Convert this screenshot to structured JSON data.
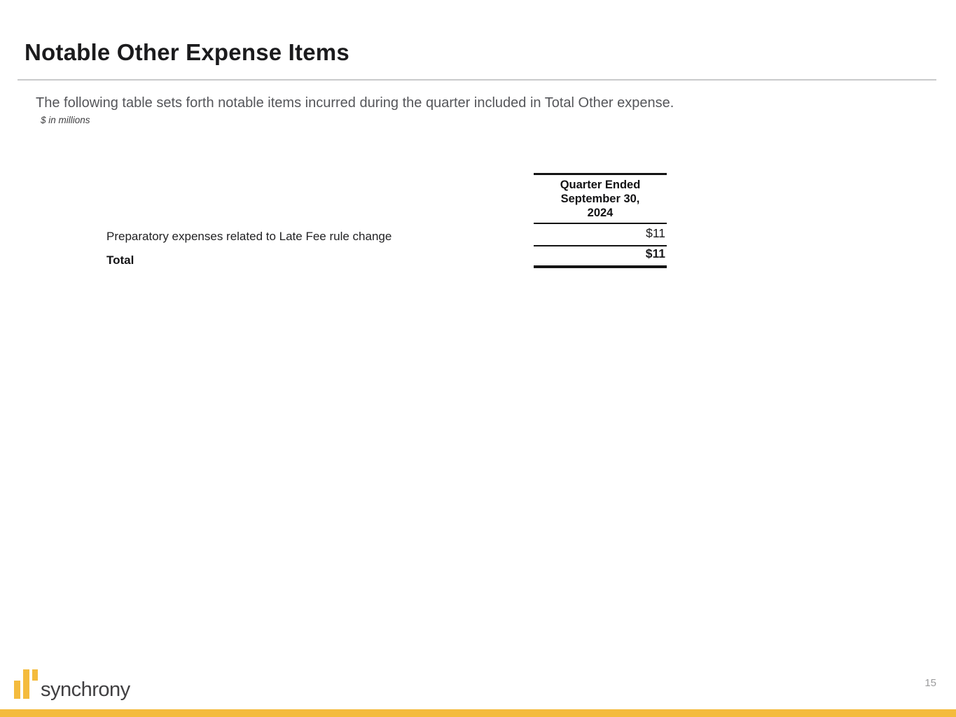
{
  "slide": {
    "title": "Notable Other Expense Items",
    "intro": "The following table sets forth notable items incurred during the quarter included in Total Other expense.",
    "units_note": "$ in millions",
    "page_number": "15"
  },
  "table": {
    "header_lines": [
      "Quarter Ended",
      "September 30,",
      "2024"
    ],
    "rows": [
      {
        "label": "Preparatory expenses related to Late Fee rule change",
        "value": "$11"
      },
      {
        "label": "Total",
        "value": "$11"
      }
    ]
  },
  "footer": {
    "brand": "synchrony"
  },
  "colors": {
    "brand_gold": "#F4BB3D",
    "title_text": "#1B1B1D",
    "body_text": "#55565A",
    "table_text": "#1A1A1C",
    "rule_gray": "#C9CACB",
    "page_num": "#9B9B9C",
    "logo_text": "#414042"
  }
}
